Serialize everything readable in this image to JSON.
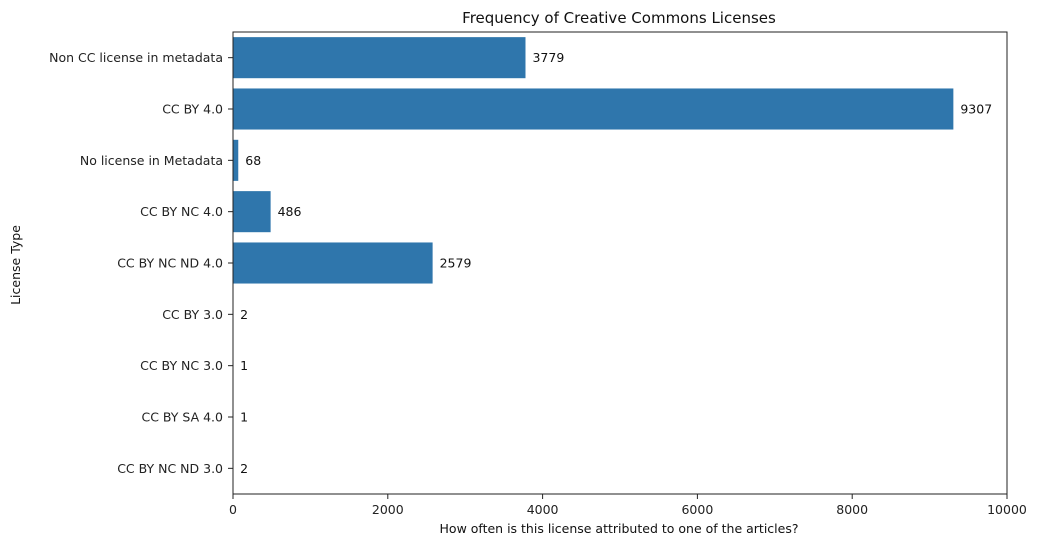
{
  "chart_data": {
    "type": "bar",
    "orientation": "horizontal",
    "title": "Frequency of Creative Commons Licenses",
    "xlabel": "How often is this license attributed to one of the articles?",
    "ylabel": "License Type",
    "categories": [
      "Non CC license in metadata",
      "CC BY 4.0",
      "No license in Metadata",
      "CC BY NC 4.0",
      "CC BY NC ND 4.0",
      "CC BY 3.0",
      "CC BY NC 3.0",
      "CC BY SA 4.0",
      "CC BY NC ND 3.0"
    ],
    "values": [
      3779,
      9307,
      68,
      486,
      2579,
      2,
      1,
      1,
      2
    ],
    "value_labels": [
      "3779",
      "9307",
      "68",
      "486",
      "2579",
      "2",
      "1",
      "1",
      "2"
    ],
    "xlim": [
      0,
      10000
    ],
    "xticks": [
      0,
      2000,
      4000,
      6000,
      8000,
      10000
    ],
    "xtick_labels": [
      "0",
      "2000",
      "4000",
      "6000",
      "8000",
      "10000"
    ],
    "bar_color": "#2f76ac",
    "grid": false,
    "legend": "none"
  }
}
